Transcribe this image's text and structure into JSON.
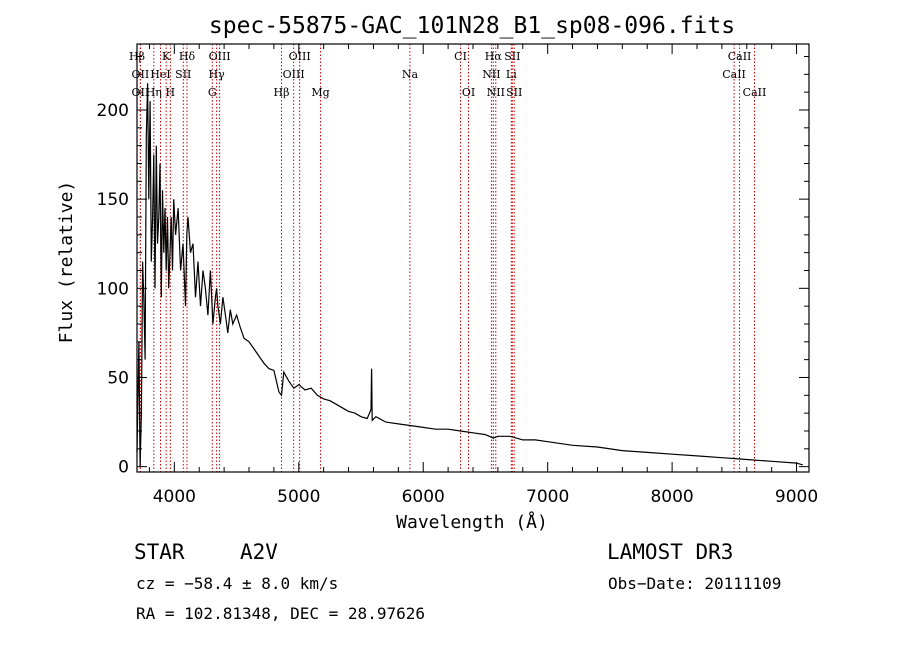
{
  "chart_data": {
    "type": "line",
    "title": "spec-55875-GAC_101N28_B1_sp08-096.fits",
    "xlabel": "Wavelength (Å)",
    "ylabel": "Flux (relative)",
    "xlim": [
      3700,
      9100
    ],
    "ylim": [
      -3,
      237
    ],
    "x_ticks": [
      4000,
      5000,
      6000,
      7000,
      8000,
      9000
    ],
    "y_ticks": [
      0,
      50,
      100,
      150,
      200
    ],
    "series": [
      {
        "name": "flux",
        "x": [
          3700,
          3715,
          3725,
          3735,
          3745,
          3755,
          3765,
          3775,
          3785,
          3795,
          3805,
          3815,
          3825,
          3835,
          3845,
          3855,
          3865,
          3875,
          3885,
          3895,
          3905,
          3915,
          3925,
          3935,
          3945,
          3955,
          3965,
          3975,
          3985,
          3995,
          4010,
          4030,
          4050,
          4070,
          4090,
          4100,
          4110,
          4130,
          4150,
          4170,
          4190,
          4210,
          4230,
          4250,
          4270,
          4290,
          4310,
          4330,
          4340,
          4350,
          4370,
          4390,
          4410,
          4430,
          4450,
          4470,
          4500,
          4530,
          4560,
          4600,
          4640,
          4680,
          4720,
          4760,
          4800,
          4840,
          4861,
          4880,
          4920,
          4960,
          5000,
          5050,
          5100,
          5150,
          5200,
          5250,
          5300,
          5350,
          5400,
          5450,
          5500,
          5550,
          5580,
          5585,
          5590,
          5620,
          5700,
          5800,
          5900,
          6000,
          6100,
          6200,
          6300,
          6400,
          6500,
          6563,
          6600,
          6700,
          6800,
          6900,
          7000,
          7200,
          7400,
          7600,
          7800,
          8000,
          8200,
          8400,
          8600,
          8800,
          9000,
          9050
        ],
        "values": [
          8,
          70,
          0,
          30,
          115,
          95,
          60,
          185,
          215,
          150,
          205,
          115,
          140,
          175,
          100,
          180,
          125,
          140,
          170,
          95,
          155,
          120,
          145,
          110,
          140,
          100,
          120,
          140,
          110,
          150,
          130,
          145,
          110,
          125,
          90,
          130,
          140,
          120,
          125,
          95,
          115,
          90,
          110,
          100,
          85,
          110,
          80,
          95,
          100,
          90,
          80,
          95,
          85,
          75,
          88,
          80,
          85,
          78,
          72,
          70,
          66,
          62,
          58,
          55,
          54,
          42,
          40,
          53,
          48,
          44,
          46,
          43,
          44,
          40,
          38,
          37,
          35,
          33,
          31,
          30,
          28,
          27,
          32,
          55,
          26,
          28,
          25,
          24,
          23,
          22,
          21,
          21,
          20,
          19,
          18,
          16,
          17,
          17,
          15,
          15,
          14,
          12,
          11,
          9,
          8,
          7,
          6,
          5,
          4,
          3,
          2,
          1
        ]
      }
    ],
    "spectral_lines": [
      {
        "label": "Hβ",
        "wl": 3700,
        "row": 0
      },
      {
        "label": "K",
        "wl": 3934,
        "row": 0
      },
      {
        "label": "Hδ",
        "wl": 4102,
        "row": 0
      },
      {
        "label": "OIII",
        "wl": 4364,
        "row": 0
      },
      {
        "label": "OIII",
        "wl": 5007,
        "row": 0
      },
      {
        "label": "CI",
        "wl": 6300,
        "row": 0
      },
      {
        "label": "Hα",
        "wl": 6563,
        "row": 0
      },
      {
        "label": "SII",
        "wl": 6716,
        "row": 0
      },
      {
        "label": "CaII",
        "wl": 8542,
        "row": 0
      },
      {
        "label": "OII",
        "wl": 3727,
        "row": 1
      },
      {
        "label": "HeI",
        "wl": 3889,
        "row": 1
      },
      {
        "label": "SII",
        "wl": 4072,
        "row": 1
      },
      {
        "label": "Hγ",
        "wl": 4340,
        "row": 1
      },
      {
        "label": "OIII",
        "wl": 4959,
        "row": 1
      },
      {
        "label": "Na",
        "wl": 5893,
        "row": 1
      },
      {
        "label": "NII",
        "wl": 6548,
        "row": 1
      },
      {
        "label": "Li",
        "wl": 6708,
        "row": 1
      },
      {
        "label": "CaII",
        "wl": 8498,
        "row": 1
      },
      {
        "label": "OII",
        "wl": 3727,
        "row": 2
      },
      {
        "label": "Hη",
        "wl": 3835,
        "row": 2
      },
      {
        "label": "H",
        "wl": 3968,
        "row": 2
      },
      {
        "label": "G",
        "wl": 4305,
        "row": 2
      },
      {
        "label": "Hβ",
        "wl": 4861,
        "row": 2
      },
      {
        "label": "Mg",
        "wl": 5175,
        "row": 2
      },
      {
        "label": "OI",
        "wl": 6364,
        "row": 2
      },
      {
        "label": "NII",
        "wl": 6583,
        "row": 2
      },
      {
        "label": "SII",
        "wl": 6731,
        "row": 2
      },
      {
        "label": "CaII",
        "wl": 8662,
        "row": 2
      }
    ],
    "line_color": "#cc0000"
  },
  "info": {
    "object_class": "STAR",
    "subclass": "A2V",
    "survey": "LAMOST DR3",
    "cz": "cz = −58.4 ± 8.0 km/s",
    "obs_date": "Obs−Date: 20111109",
    "coords": "RA = 102.81348, DEC =  28.97626"
  }
}
